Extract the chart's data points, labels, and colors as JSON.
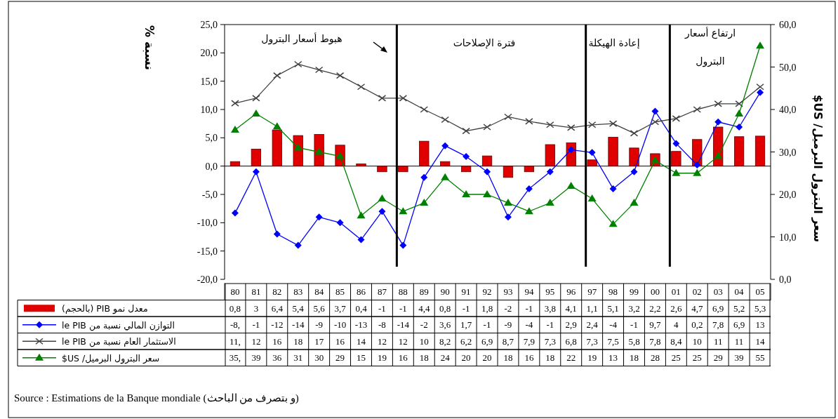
{
  "chart_data": {
    "type": "bar",
    "categories": [
      "80",
      "81",
      "82",
      "83",
      "84",
      "85",
      "86",
      "87",
      "88",
      "89",
      "90",
      "91",
      "92",
      "93",
      "94",
      "95",
      "96",
      "97",
      "98",
      "99",
      "00",
      "01",
      "02",
      "03",
      "04",
      "05"
    ],
    "ylabel": "نسبة %",
    "y2label": "سعر البترول   البرميل/ US$",
    "ylim": [
      -20,
      25
    ],
    "yticks": [
      {
        "value": -20,
        "label": "-20,0"
      },
      {
        "value": -15,
        "label": "-15,0"
      },
      {
        "value": -10,
        "label": "-10,0"
      },
      {
        "value": -5,
        "label": "-5,0"
      },
      {
        "value": 0,
        "label": "0,0"
      },
      {
        "value": 5,
        "label": "5,0"
      },
      {
        "value": 10,
        "label": "10,0"
      },
      {
        "value": 15,
        "label": "15,0"
      },
      {
        "value": 20,
        "label": "20,0"
      },
      {
        "value": 25,
        "label": "25,0"
      }
    ],
    "y2lim": [
      0,
      60
    ],
    "y2ticks": [
      {
        "value": 0,
        "label": "0,0"
      },
      {
        "value": 10,
        "label": "10,0"
      },
      {
        "value": 20,
        "label": "20,0"
      },
      {
        "value": 30,
        "label": "30,0"
      },
      {
        "value": 40,
        "label": "40,0"
      },
      {
        "value": 50,
        "label": "50,0"
      },
      {
        "value": 60,
        "label": "60,0"
      }
    ],
    "legend": "bottom left",
    "series": [
      {
        "name": "معدل نمو PIB (بالحجم)",
        "color": "#e00000",
        "values": [
          0.8,
          3,
          6.4,
          5.4,
          5.6,
          3.7,
          0.4,
          -1,
          -1,
          4.4,
          0.8,
          -1,
          1.8,
          -2,
          -1,
          3.8,
          4.1,
          1.1,
          5.1,
          3.2,
          2.2,
          2.6,
          4.7,
          6.9,
          5.2,
          5.3
        ],
        "value_labels": [
          "0,8",
          "3",
          "6,4",
          "5,4",
          "5,6",
          "3,7",
          "0,4",
          "-1",
          "-1",
          "4,4",
          "0,8",
          "-1",
          "1,8",
          "-2",
          "-1",
          "3,8",
          "4,1",
          "1,1",
          "5,1",
          "3,2",
          "2,2",
          "2,6",
          "4,7",
          "6,9",
          "5,2",
          "5,3"
        ]
      },
      {
        "name": "التوازن المالي نسبة من le PIB",
        "type": "line",
        "marker": "diamond",
        "color": "#0000ff",
        "values": [
          -8.3,
          -1,
          -12,
          -14,
          -9,
          -10,
          -13,
          -8,
          -14,
          -2,
          3.6,
          1.7,
          -1,
          -9,
          -4,
          -1,
          2.9,
          2.4,
          -4,
          -1,
          9.7,
          4,
          0.2,
          7.8,
          6.9,
          13
        ],
        "value_labels": [
          "-8,",
          "-1",
          "-12",
          "-14",
          "-9",
          "-10",
          "-13",
          "-8",
          "-14",
          "-2",
          "3,6",
          "1,7",
          "-1",
          "-9",
          "-4",
          "-1",
          "2,9",
          "2,4",
          "-4",
          "-1",
          "9,7",
          "4",
          "0,2",
          "7,8",
          "6,9",
          "13"
        ]
      },
      {
        "name": "الاستثمار العام نسبة من le PIB",
        "type": "line",
        "marker": "cross",
        "color": "#404040",
        "values": [
          11.1,
          12,
          16,
          18,
          17,
          16,
          14,
          12,
          12,
          10,
          8.2,
          6.2,
          6.9,
          8.7,
          7.9,
          7.3,
          6.8,
          7.3,
          7.5,
          5.8,
          7.8,
          8.4,
          10,
          11,
          11,
          14
        ],
        "value_labels": [
          "11,",
          "12",
          "16",
          "18",
          "17",
          "16",
          "14",
          "12",
          "12",
          "10",
          "8,2",
          "6,2",
          "6,9",
          "8,7",
          "7,9",
          "7,3",
          "6,8",
          "7,3",
          "7,5",
          "5,8",
          "7,8",
          "8,4",
          "10",
          "11",
          "11",
          "14"
        ]
      },
      {
        "name": "سعر البترول البرميل/ US$",
        "type": "line",
        "marker": "triangle",
        "axis": "y2",
        "color": "#008000",
        "values": [
          35.2,
          39,
          36,
          31,
          30,
          29,
          15,
          19,
          16,
          18,
          24,
          20,
          20,
          18,
          16,
          18,
          22,
          19,
          13,
          18,
          28,
          25,
          25,
          29,
          39,
          55
        ],
        "value_labels": [
          "35,",
          "39",
          "36",
          "31",
          "30",
          "29",
          "15",
          "19",
          "16",
          "18",
          "24",
          "20",
          "20",
          "18",
          "16",
          "18",
          "22",
          "19",
          "13",
          "18",
          "28",
          "25",
          "25",
          "29",
          "39",
          "55"
        ]
      }
    ],
    "ref_lines": [
      {
        "axis": "x",
        "value": "88",
        "color": "#000000"
      },
      {
        "axis": "x",
        "value": "97",
        "color": "#000000"
      },
      {
        "axis": "x",
        "value": "01",
        "color": "#000000"
      }
    ],
    "annotations": [
      "هبوط أسعار البترول",
      "فترة الإصلاحات",
      "إعادة الهيكلة",
      "ارتفاع أسعار البترول",
      "Source : Estimations de la Banque mondiale (و بتصرف من الباحث)"
    ]
  }
}
